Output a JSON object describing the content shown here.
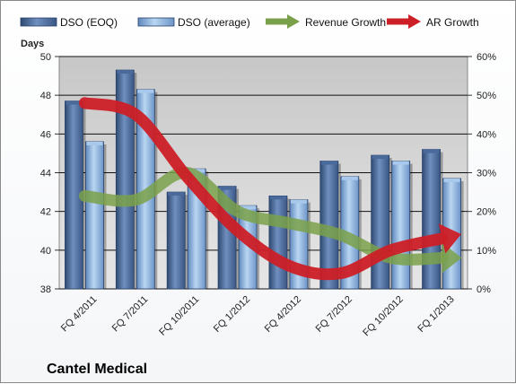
{
  "chart_data": {
    "type": "bar",
    "title": "Cantel Medical",
    "y_left_label": "Days",
    "categories": [
      "FQ 4/2011",
      "FQ 7/2011",
      "FQ 10/2011",
      "FQ 1/2012",
      "FQ 4/2012",
      "FQ 7/2012",
      "FQ 10/2012",
      "FQ 1/2013"
    ],
    "y_left": {
      "min": 38,
      "max": 50,
      "ticks": [
        38,
        40,
        42,
        44,
        46,
        48,
        50
      ]
    },
    "y_right": {
      "min": 0,
      "max": 60,
      "ticks": [
        "0%",
        "10%",
        "20%",
        "30%",
        "40%",
        "50%",
        "60%"
      ]
    },
    "bar_series": [
      {
        "name": "DSO (EOQ)",
        "color": "#4f6f9e",
        "values": [
          47.7,
          49.3,
          43.0,
          43.3,
          42.8,
          44.6,
          44.9,
          45.2
        ]
      },
      {
        "name": "DSO (average)",
        "color": "#8cb4e2",
        "values": [
          45.6,
          48.3,
          44.2,
          42.3,
          42.6,
          43.8,
          44.6,
          43.7
        ]
      }
    ],
    "line_series": [
      {
        "name": "Revenue Growth",
        "color": "#7aa14a",
        "values": [
          24,
          23,
          30,
          20,
          17,
          14,
          8,
          8
        ]
      },
      {
        "name": "AR Growth",
        "color": "#cc1f27",
        "values": [
          48,
          45,
          29,
          15,
          6,
          4,
          10,
          13
        ]
      }
    ],
    "grid": true,
    "legend_position": "top"
  }
}
